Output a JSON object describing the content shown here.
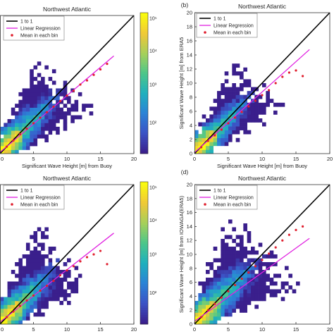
{
  "colors": {
    "identity_line": "#000000",
    "regression_line": "#e020e0",
    "bin_mean": "#e0202f",
    "colormap": [
      "#3a1f8c",
      "#3b54c6",
      "#2b83d6",
      "#1fb0bd",
      "#4cc68a",
      "#a6d05a",
      "#f0c838",
      "#f9fb0e"
    ]
  },
  "legend_labels": {
    "identity": "1 to 1",
    "regression": "Linear Regression",
    "bin_mean": "Mean in each bin"
  },
  "chart_data": [
    {
      "panel": "(a)",
      "panel_label_shown": false,
      "type": "heatmap",
      "title": "Northwest Atlantic",
      "xlabel": "Significant Wave Height [m] from Buoy",
      "ylabel": "",
      "xlim": [
        0,
        20
      ],
      "ylim": [
        0,
        20
      ],
      "xticks": [
        "0",
        "5",
        "10",
        "15",
        "20"
      ],
      "yticks": [],
      "density_spread": 0.16,
      "density_extent": 13.5,
      "regression": {
        "slope": 0.82,
        "intercept": 0.2
      },
      "bin_means": [
        [
          1,
          1.0
        ],
        [
          2,
          1.9
        ],
        [
          3,
          2.8
        ],
        [
          4,
          3.6
        ],
        [
          5,
          4.4
        ],
        [
          6,
          5.2
        ],
        [
          7,
          6.0
        ],
        [
          8,
          6.8
        ],
        [
          9,
          7.6
        ],
        [
          10,
          8.4
        ],
        [
          11,
          9.1
        ],
        [
          12,
          10.0
        ],
        [
          13,
          10.6
        ],
        [
          14,
          11.4
        ],
        [
          15,
          12.2
        ]
      ],
      "outlier_means": [
        [
          16,
          13.0
        ]
      ],
      "colorbar": {
        "scale": "log",
        "tick_labels": [
          "10^5",
          "10^4",
          "10^3",
          "10^2"
        ]
      }
    },
    {
      "panel": "(b)",
      "panel_label_shown": true,
      "type": "heatmap",
      "title": "Northwest Atlantic",
      "xlabel": "Significant Wave Height [m] from Buoy",
      "ylabel": "Significant Wave Height [m] from ERA5",
      "xlim": [
        0,
        20
      ],
      "ylim": [
        0,
        20
      ],
      "xticks": [
        "0",
        "5",
        "10",
        "15",
        "20"
      ],
      "yticks": [
        "0",
        "2",
        "4",
        "6",
        "8",
        "10",
        "12",
        "14",
        "16",
        "18",
        "20"
      ],
      "density_spread": 0.14,
      "density_extent": 13,
      "regression": {
        "slope": 0.86,
        "intercept": 0.15
      },
      "bin_means": [
        [
          1,
          0.9
        ],
        [
          2,
          1.8
        ],
        [
          3,
          2.6
        ],
        [
          4,
          3.4
        ],
        [
          5,
          4.3
        ],
        [
          6,
          5.1
        ],
        [
          7,
          5.9
        ],
        [
          8,
          6.7
        ],
        [
          9,
          7.5
        ],
        [
          10,
          8.3
        ],
        [
          11,
          9.0
        ],
        [
          12,
          10.0
        ],
        [
          13,
          10.9
        ],
        [
          14,
          11.5
        ],
        [
          15,
          11.8
        ]
      ],
      "outlier_means": [
        [
          16,
          11.0
        ]
      ]
    },
    {
      "panel": "(c)",
      "panel_label_shown": false,
      "type": "heatmap",
      "title": "Northwest Atlantic",
      "xlabel": "Significant Wave Height [m] from Buoy",
      "ylabel": "",
      "xlim": [
        0,
        20
      ],
      "ylim": [
        0,
        20
      ],
      "xticks": [
        "0",
        "5",
        "10",
        "15",
        "20"
      ],
      "yticks": [],
      "density_spread": 0.2,
      "density_extent": 13,
      "regression": {
        "slope": 0.75,
        "intercept": 0.3
      },
      "bin_means": [
        [
          1,
          1.0
        ],
        [
          2,
          1.8
        ],
        [
          3,
          2.6
        ],
        [
          4,
          3.4
        ],
        [
          5,
          4.1
        ],
        [
          6,
          4.8
        ],
        [
          7,
          5.5
        ],
        [
          8,
          6.2
        ],
        [
          9,
          7.0
        ],
        [
          10,
          7.7
        ],
        [
          11,
          8.3
        ],
        [
          12,
          9.0
        ],
        [
          13,
          9.6
        ],
        [
          14,
          10.0
        ],
        [
          15,
          10.5
        ]
      ],
      "outlier_means": [
        [
          16,
          8.6
        ]
      ],
      "colorbar": {
        "scale": "log",
        "tick_labels": [
          "10^5",
          "10^4",
          "10^3",
          "10^2"
        ]
      }
    },
    {
      "panel": "(d)",
      "panel_label_shown": true,
      "type": "heatmap",
      "title": "Northwest Atlantic",
      "xlabel": "Significant Wave Height [m] from Buoy",
      "ylabel": "Significant Wave Height [m] from IOWAGA(ERA5)",
      "xlim": [
        0,
        20
      ],
      "ylim": [
        0,
        20
      ],
      "xticks": [
        "0",
        "5",
        "10",
        "15",
        "20"
      ],
      "yticks": [
        "0",
        "2",
        "4",
        "6",
        "8",
        "10",
        "12",
        "14",
        "16",
        "18",
        "20"
      ],
      "density_spread": 0.22,
      "density_extent": 14,
      "regression": {
        "slope": 0.7,
        "intercept": 0.4
      },
      "bin_means": [
        [
          1,
          1.0
        ],
        [
          2,
          2.0
        ],
        [
          3,
          2.9
        ],
        [
          4,
          3.8
        ],
        [
          5,
          4.7
        ],
        [
          6,
          5.6
        ],
        [
          7,
          6.5
        ],
        [
          8,
          7.4
        ],
        [
          9,
          8.3
        ],
        [
          10,
          9.2
        ],
        [
          11,
          10.1
        ],
        [
          12,
          11.0
        ],
        [
          13,
          12.0
        ],
        [
          14,
          12.8
        ],
        [
          15,
          13.5
        ]
      ],
      "outlier_means": [
        [
          16,
          14.0
        ]
      ]
    }
  ]
}
